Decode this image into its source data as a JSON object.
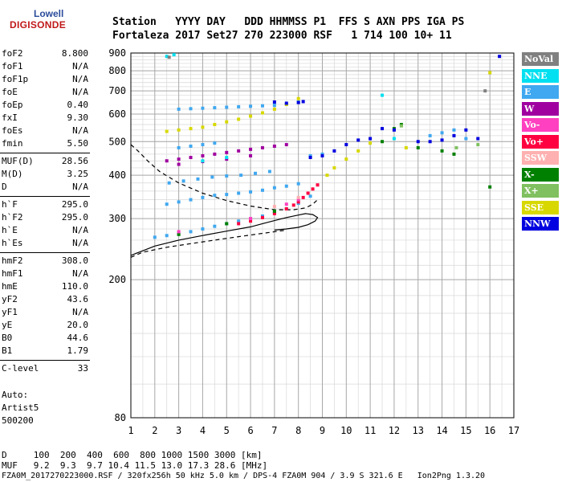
{
  "logo": {
    "line1": "Lowell",
    "line2": "DIGISONDE"
  },
  "header": {
    "row1": "Station   YYYY DAY   DDD HHMMSS P1  FFS S AXN PPS IGA PS",
    "row2": "Fortaleza 2017 Set27 270 223000 RSF   1 714 100 10+ 11"
  },
  "params": [
    {
      "label": "foF2",
      "value": "8.800"
    },
    {
      "label": "foF1",
      "value": "N/A"
    },
    {
      "label": "foF1p",
      "value": "N/A"
    },
    {
      "label": "foE",
      "value": "N/A"
    },
    {
      "label": "foEp",
      "value": "0.40"
    },
    {
      "label": "fxI",
      "value": "9.30"
    },
    {
      "label": "foEs",
      "value": "N/A"
    },
    {
      "label": "fmin",
      "value": "5.50"
    },
    {
      "label": "MUF(D)",
      "value": "28.56"
    },
    {
      "label": "M(D)",
      "value": "3.25"
    },
    {
      "label": "D",
      "value": "N/A"
    },
    {
      "label": "h`F",
      "value": "295.0"
    },
    {
      "label": "h`F2",
      "value": "295.0"
    },
    {
      "label": "h`E",
      "value": "N/A"
    },
    {
      "label": "h`Es",
      "value": "N/A"
    },
    {
      "label": "hmF2",
      "value": "308.0"
    },
    {
      "label": "hmF1",
      "value": "N/A"
    },
    {
      "label": "hmE",
      "value": "110.0"
    },
    {
      "label": "yF2",
      "value": "43.6"
    },
    {
      "label": "yF1",
      "value": "N/A"
    },
    {
      "label": "yE",
      "value": "20.0"
    },
    {
      "label": "B0",
      "value": "44.6"
    },
    {
      "label": "B1",
      "value": "1.79"
    },
    {
      "label": "C-level",
      "value": "33"
    }
  ],
  "auto": {
    "line1": "Auto:",
    "line2": "Artist5",
    "line3": "500200"
  },
  "legend": [
    {
      "label": "NoVal",
      "bg": "#808080",
      "fg": "#ffffff"
    },
    {
      "label": "NNE",
      "bg": "#00e0f0",
      "fg": "#ffffff"
    },
    {
      "label": "E",
      "bg": "#40a8f0",
      "fg": "#ffffff"
    },
    {
      "label": "W",
      "bg": "#a000a0",
      "fg": "#ffffff"
    },
    {
      "label": "Vo-",
      "bg": "#ff40c0",
      "fg": "#ffffff"
    },
    {
      "label": "Vo+",
      "bg": "#ff0040",
      "fg": "#ffffff"
    },
    {
      "label": "SSW",
      "bg": "#ffb0b0",
      "fg": "#ffffff"
    },
    {
      "label": "X-",
      "bg": "#008000",
      "fg": "#ffffff"
    },
    {
      "label": "X+",
      "bg": "#80c060",
      "fg": "#ffffff"
    },
    {
      "label": "SSE",
      "bg": "#d8d800",
      "fg": "#ffffff"
    },
    {
      "label": "NNW",
      "bg": "#0000e0",
      "fg": "#ffffff"
    }
  ],
  "footer": {
    "line1": "D     100  200  400  600  800 1000 1500 3000 [km]",
    "line2": "MUF   9.2  9.3  9.7 10.4 11.5 13.0 17.3 28.6 [MHz]",
    "line3": "FZA0M_2017270223000.RSF / 320fx256h 50 kHz 5.0 km / DPS-4 FZA0M 904 / 3.9 S 321.6 E   Ion2Png 1.3.20"
  },
  "chart_data": {
    "type": "scatter",
    "xlim": [
      1,
      17
    ],
    "ylim": [
      80,
      900
    ],
    "y_scale": "log",
    "x_ticks": [
      1,
      2,
      3,
      4,
      5,
      6,
      7,
      8,
      9,
      10,
      11,
      12,
      13,
      14,
      15,
      16,
      17
    ],
    "y_ticks": [
      80,
      200,
      300,
      400,
      500,
      600,
      700,
      800,
      900
    ],
    "grid": true,
    "legend_position": "right",
    "series": [
      {
        "name": "E",
        "color": "#40a8f0",
        "points": [
          [
            2.0,
            265
          ],
          [
            2.5,
            268
          ],
          [
            3.0,
            272
          ],
          [
            3.5,
            275
          ],
          [
            4.0,
            280
          ],
          [
            4.5,
            285
          ],
          [
            5.0,
            290
          ],
          [
            5.5,
            295
          ],
          [
            6.0,
            300
          ],
          [
            6.5,
            305
          ],
          [
            7.0,
            312
          ],
          [
            7.5,
            320
          ],
          [
            8.0,
            332
          ],
          [
            8.5,
            348
          ],
          [
            2.5,
            330
          ],
          [
            3.0,
            335
          ],
          [
            3.5,
            340
          ],
          [
            4.0,
            345
          ],
          [
            4.5,
            350
          ],
          [
            5.0,
            352
          ],
          [
            5.5,
            355
          ],
          [
            6.0,
            358
          ],
          [
            6.5,
            362
          ],
          [
            7.0,
            368
          ],
          [
            7.5,
            372
          ],
          [
            8.0,
            378
          ],
          [
            2.6,
            380
          ],
          [
            3.2,
            385
          ],
          [
            3.8,
            390
          ],
          [
            4.4,
            395
          ],
          [
            5.0,
            398
          ],
          [
            5.6,
            400
          ],
          [
            6.2,
            405
          ],
          [
            6.8,
            410
          ],
          [
            3.0,
            480
          ],
          [
            3.5,
            485
          ],
          [
            4.0,
            490
          ],
          [
            4.5,
            495
          ],
          [
            3.0,
            620
          ],
          [
            3.5,
            622
          ],
          [
            4.0,
            624
          ],
          [
            4.5,
            626
          ],
          [
            5.0,
            628
          ],
          [
            5.5,
            630
          ],
          [
            6.0,
            632
          ],
          [
            6.5,
            634
          ],
          [
            7.0,
            636
          ],
          [
            7.5,
            640
          ],
          [
            8.0,
            650
          ],
          [
            8.5,
            455
          ],
          [
            9.0,
            460
          ],
          [
            13.5,
            520
          ],
          [
            14.0,
            530
          ],
          [
            14.5,
            540
          ],
          [
            15.0,
            510
          ]
        ]
      },
      {
        "name": "W",
        "color": "#a000a0",
        "points": [
          [
            2.5,
            440
          ],
          [
            3.0,
            445
          ],
          [
            3.5,
            450
          ],
          [
            4.0,
            455
          ],
          [
            4.5,
            460
          ],
          [
            5.0,
            465
          ],
          [
            5.5,
            470
          ],
          [
            6.0,
            475
          ],
          [
            6.5,
            480
          ],
          [
            7.0,
            485
          ],
          [
            7.5,
            490
          ],
          [
            3.0,
            430
          ],
          [
            4.0,
            438
          ],
          [
            5.0,
            445
          ],
          [
            6.0,
            455
          ]
        ]
      },
      {
        "name": "Vo+",
        "color": "#ff0040",
        "points": [
          [
            5.5,
            290
          ],
          [
            6.0,
            295
          ],
          [
            6.5,
            302
          ],
          [
            7.0,
            310
          ],
          [
            7.5,
            320
          ],
          [
            7.8,
            328
          ],
          [
            8.0,
            335
          ],
          [
            8.2,
            345
          ],
          [
            8.4,
            355
          ],
          [
            8.6,
            365
          ],
          [
            8.8,
            375
          ]
        ]
      },
      {
        "name": "X-",
        "color": "#008000",
        "points": [
          [
            3.0,
            270
          ],
          [
            5.0,
            290
          ],
          [
            7.0,
            315
          ],
          [
            11.5,
            500
          ],
          [
            12.0,
            545
          ],
          [
            12.3,
            560
          ],
          [
            13.0,
            480
          ],
          [
            14.0,
            470
          ],
          [
            14.5,
            460
          ],
          [
            16.0,
            370
          ]
        ]
      },
      {
        "name": "SSE",
        "color": "#d8d800",
        "points": [
          [
            2.5,
            535
          ],
          [
            3.0,
            540
          ],
          [
            3.5,
            545
          ],
          [
            4.0,
            550
          ],
          [
            4.5,
            560
          ],
          [
            5.0,
            570
          ],
          [
            5.5,
            580
          ],
          [
            6.0,
            592
          ],
          [
            6.5,
            605
          ],
          [
            7.0,
            620
          ],
          [
            7.5,
            640
          ],
          [
            8.0,
            665
          ],
          [
            9.2,
            400
          ],
          [
            9.5,
            420
          ],
          [
            10.0,
            445
          ],
          [
            10.5,
            470
          ],
          [
            11.0,
            495
          ],
          [
            12.5,
            480
          ],
          [
            16.0,
            790
          ]
        ]
      },
      {
        "name": "NNW",
        "color": "#0000e0",
        "points": [
          [
            8.5,
            450
          ],
          [
            9.0,
            455
          ],
          [
            9.5,
            470
          ],
          [
            10.0,
            490
          ],
          [
            10.5,
            505
          ],
          [
            11.0,
            510
          ],
          [
            7.0,
            650
          ],
          [
            7.5,
            645
          ],
          [
            8.0,
            648
          ],
          [
            8.2,
            652
          ],
          [
            13.5,
            500
          ],
          [
            14.0,
            505
          ],
          [
            14.5,
            520
          ],
          [
            15.0,
            540
          ],
          [
            15.5,
            510
          ],
          [
            16.4,
            880
          ],
          [
            12.0,
            540
          ],
          [
            11.5,
            545
          ],
          [
            13.0,
            500
          ]
        ]
      },
      {
        "name": "NNE",
        "color": "#00e0f0",
        "points": [
          [
            4.0,
            440
          ],
          [
            5.0,
            450
          ],
          [
            11.5,
            680
          ],
          [
            12.0,
            510
          ],
          [
            2.5,
            880
          ],
          [
            2.8,
            890
          ]
        ]
      },
      {
        "name": "Vo-",
        "color": "#ff40c0",
        "points": [
          [
            3.0,
            275
          ],
          [
            6.0,
            300
          ],
          [
            7.5,
            330
          ],
          [
            8.0,
            340
          ]
        ]
      },
      {
        "name": "X+",
        "color": "#80c060",
        "points": [
          [
            12.3,
            555
          ],
          [
            14.6,
            480
          ],
          [
            15.5,
            490
          ]
        ]
      },
      {
        "name": "SSW",
        "color": "#ffb0b0",
        "points": [
          [
            7.0,
            325
          ],
          [
            8.0,
            345
          ]
        ]
      },
      {
        "name": "NoVal",
        "color": "#808080",
        "points": [
          [
            2.6,
            875
          ],
          [
            15.8,
            700
          ]
        ]
      }
    ],
    "profile_solid": [
      [
        1.0,
        235
      ],
      [
        2.0,
        250
      ],
      [
        3.0,
        260
      ],
      [
        4.0,
        268
      ],
      [
        5.0,
        276
      ],
      [
        6.0,
        284
      ],
      [
        6.5,
        290
      ],
      [
        7.0,
        296
      ],
      [
        7.5,
        302
      ],
      [
        8.0,
        307
      ],
      [
        8.3,
        310
      ],
      [
        8.6,
        308
      ],
      [
        8.8,
        302
      ],
      [
        8.7,
        295
      ],
      [
        8.4,
        288
      ],
      [
        8.0,
        283
      ],
      [
        7.5,
        280
      ],
      [
        7.0,
        278
      ]
    ],
    "profile_dashed": [
      [
        1.0,
        490
      ],
      [
        1.3,
        470
      ],
      [
        1.7,
        440
      ],
      [
        2.2,
        410
      ],
      [
        3.0,
        380
      ],
      [
        4.0,
        355
      ],
      [
        5.0,
        338
      ],
      [
        6.0,
        326
      ],
      [
        7.0,
        318
      ],
      [
        7.8,
        318
      ],
      [
        8.3,
        322
      ],
      [
        8.6,
        330
      ],
      [
        8.8,
        340
      ]
    ],
    "profile_dashed_low": [
      [
        1.0,
        232
      ],
      [
        1.5,
        240
      ],
      [
        2.5,
        248
      ],
      [
        3.5,
        254
      ],
      [
        4.5,
        260
      ],
      [
        5.5,
        266
      ],
      [
        6.5,
        272
      ],
      [
        7.5,
        278
      ]
    ]
  }
}
